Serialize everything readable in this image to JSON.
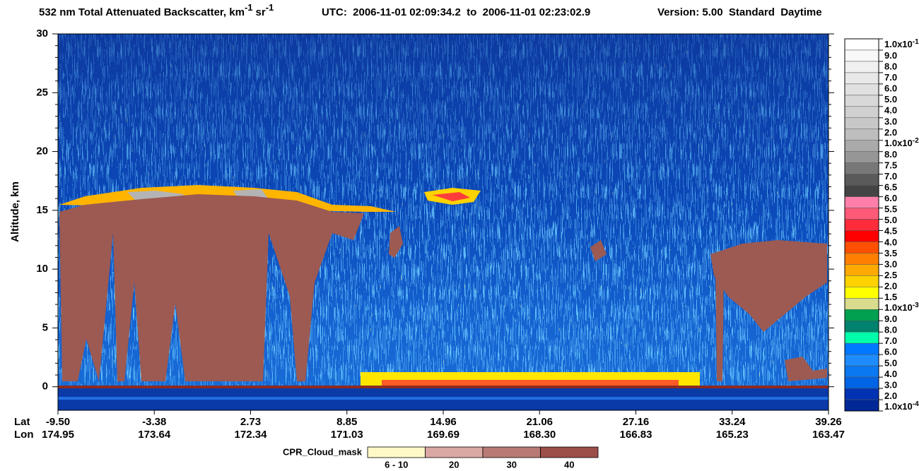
{
  "chart_data": {
    "type": "heatmap",
    "title": "532 nm Total Attenuated Backscatter, km",
    "title_exp": "-1",
    "title_unit2": "sr",
    "title_unit2_exp": "-1",
    "time_range": "UTC:  2006-11-01 02:09:34.2  to  2006-11-01 02:23:02.9",
    "product": "Version: 5.00  Standard  Daytime",
    "ylabel": "Altitude, km",
    "ylim": [
      -2,
      30
    ],
    "yticks": [
      0,
      5,
      10,
      15,
      20,
      25,
      30
    ],
    "x_rows": [
      {
        "name": "Lat",
        "labels": [
          "-9.50",
          "-3.38",
          "2.73",
          "8.85",
          "14.96",
          "21.06",
          "27.16",
          "33.24",
          "39.26"
        ]
      },
      {
        "name": "Lon",
        "labels": [
          "174.95",
          "173.64",
          "172.34",
          "171.03",
          "169.69",
          "168.30",
          "166.83",
          "165.23",
          "163.47"
        ]
      }
    ],
    "colorbar": {
      "labels": [
        {
          "text": "1.0x10",
          "sup": "-1"
        },
        "9.0",
        "8.0",
        "7.0",
        "6.0",
        "5.0",
        "4.0",
        "3.0",
        "2.0",
        {
          "text": "1.0x10",
          "sup": "-2"
        },
        "8.0",
        "7.5",
        "7.0",
        "6.5",
        "6.0",
        "5.5",
        "5.0",
        "4.5",
        "4.0",
        "3.5",
        "3.0",
        "2.5",
        "2.0",
        "1.5",
        {
          "text": "1.0x10",
          "sup": "-3"
        },
        "9.0",
        "8.0",
        "7.0",
        "6.0",
        "5.0",
        "4.0",
        "3.0",
        "2.0",
        {
          "text": "1.0x10",
          "sup": "-4"
        }
      ],
      "colors": [
        "#ffffff",
        "#f8f8f8",
        "#f0f0f0",
        "#e8e8e8",
        "#e0e0e0",
        "#d8d8d8",
        "#d0d0d0",
        "#c8c8c8",
        "#bebebe",
        "#aaaaaa",
        "#969696",
        "#787878",
        "#5a5a5a",
        "#444444",
        "#ff7faa",
        "#ff5a78",
        "#ff2d3c",
        "#ff0000",
        "#ff5000",
        "#ff7f00",
        "#ffaa00",
        "#ffd200",
        "#ffff00",
        "#d8dc8c",
        "#00a050",
        "#00826e",
        "#00ffaa",
        "#0078ff",
        "#1e8cff",
        "#0a78f0",
        "#0064e6",
        "#0032b4",
        "#002896"
      ]
    },
    "cloud_mask": {
      "title": "CPR_Cloud_mask",
      "labels": [
        "6 - 10",
        "20",
        "30",
        "40"
      ],
      "colors": [
        "#fff9c8",
        "#d9a8a2",
        "#b87a74",
        "#9c4e48"
      ]
    }
  }
}
